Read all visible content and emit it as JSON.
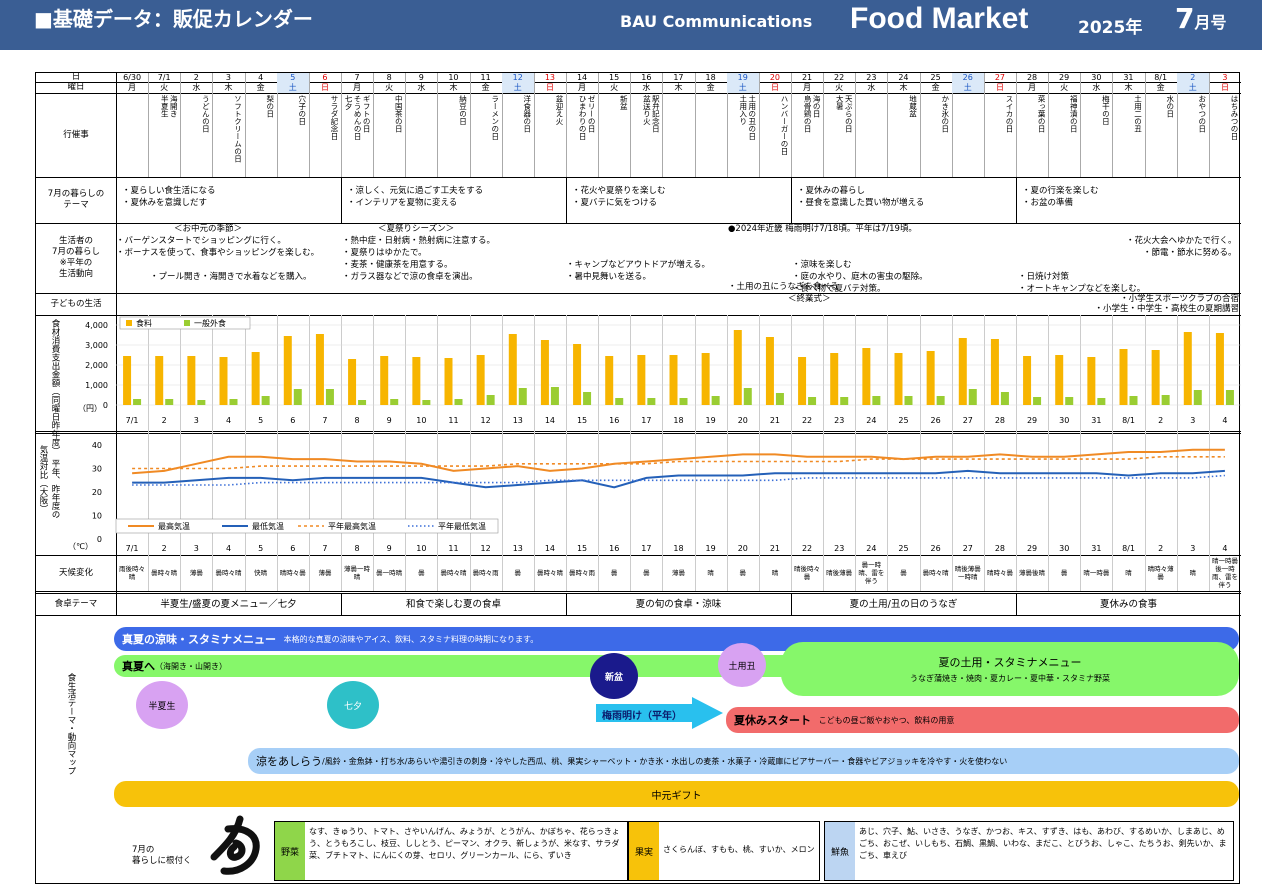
{
  "header": {
    "title": "■基礎データ：販促カレンダー",
    "company": "BAU Communications",
    "brand": "Food Market",
    "year": "2025年",
    "month": "7",
    "month_unit": "月号"
  },
  "labels": {
    "date": "日",
    "weekday": "曜日",
    "events": "行催事",
    "theme": "7月の暮らしの\nテーマ",
    "lifestyle": "生活者の\n7月の暮らし\n※平年の\n生活動向",
    "kids": "子どもの生活",
    "consumption": "食材消費支出金額（同曜日昨年度）",
    "consumption_unit": "（円）",
    "temp": "気温対比（大阪）",
    "temp_sub": "平年、昨年度の",
    "temp_unit": "（℃）",
    "weather": "天候変化",
    "food_theme": "食卓テーマ",
    "map": "食生活テーマ・動向マップ"
  },
  "days": [
    {
      "d": "6/30",
      "w": "月",
      "ev": "",
      "wx": "雨後時々晴"
    },
    {
      "d": "7/1",
      "w": "火",
      "ev": "海開き｜半夏生",
      "wx": "曇時々晴"
    },
    {
      "d": "2",
      "w": "水",
      "ev": "うどんの日",
      "wx": "薄曇"
    },
    {
      "d": "3",
      "w": "木",
      "ev": "ソフトクリームの日",
      "wx": "曇時々晴"
    },
    {
      "d": "4",
      "w": "金",
      "ev": "梨の日",
      "wx": "快晴"
    },
    {
      "d": "5",
      "w": "土",
      "ev": "穴子の日",
      "wx": "晴時々曇"
    },
    {
      "d": "6",
      "w": "日",
      "ev": "サラダ記念日",
      "wx": "薄曇"
    },
    {
      "d": "7",
      "w": "月",
      "ev": "ギフトの日｜そうめんの日｜七夕",
      "wx": "薄曇一時晴"
    },
    {
      "d": "8",
      "w": "火",
      "ev": "中国茶の日",
      "wx": "曇一時晴"
    },
    {
      "d": "9",
      "w": "水",
      "ev": "",
      "wx": "曇"
    },
    {
      "d": "10",
      "w": "木",
      "ev": "納豆の日",
      "wx": "曇時々晴"
    },
    {
      "d": "11",
      "w": "金",
      "ev": "ラーメンの日",
      "wx": "曇時々雨"
    },
    {
      "d": "12",
      "w": "土",
      "ev": "洋食器の日",
      "wx": "曇"
    },
    {
      "d": "13",
      "w": "日",
      "ev": "盆迎え火",
      "wx": "曇時々晴"
    },
    {
      "d": "14",
      "w": "月",
      "ev": "ゼリーの日｜ひまわりの日",
      "wx": "曇時々雨"
    },
    {
      "d": "15",
      "w": "火",
      "ev": "新盆",
      "wx": "曇"
    },
    {
      "d": "16",
      "w": "水",
      "ev": "駅弁記念日｜盆送り火",
      "wx": "曇"
    },
    {
      "d": "17",
      "w": "木",
      "ev": "",
      "wx": "薄曇"
    },
    {
      "d": "18",
      "w": "金",
      "ev": "",
      "wx": "晴"
    },
    {
      "d": "19",
      "w": "土",
      "ev": "土用の丑の日｜土用入り",
      "wx": "曇"
    },
    {
      "d": "20",
      "w": "日",
      "ev": "ハンバーガーの日",
      "wx": "晴"
    },
    {
      "d": "21",
      "w": "月",
      "ev": "海の日｜烏骨鶏の日",
      "wx": "晴後時々曇"
    },
    {
      "d": "22",
      "w": "火",
      "ev": "天ぷらの日｜大暑",
      "wx": "晴後薄曇"
    },
    {
      "d": "23",
      "w": "水",
      "ev": "",
      "wx": "曇一時晴、雷を伴う"
    },
    {
      "d": "24",
      "w": "木",
      "ev": "地蔵盆",
      "wx": "曇"
    },
    {
      "d": "25",
      "w": "金",
      "ev": "かき氷の日",
      "wx": "曇時々晴"
    },
    {
      "d": "26",
      "w": "土",
      "ev": "",
      "wx": "晴後薄曇一時晴"
    },
    {
      "d": "27",
      "w": "日",
      "ev": "スイカの日",
      "wx": "晴時々曇"
    },
    {
      "d": "28",
      "w": "月",
      "ev": "菜っ葉の日",
      "wx": "薄曇後晴"
    },
    {
      "d": "29",
      "w": "火",
      "ev": "福神漬の日",
      "wx": "曇"
    },
    {
      "d": "30",
      "w": "水",
      "ev": "梅干の日",
      "wx": "晴一時曇"
    },
    {
      "d": "31",
      "w": "木",
      "ev": "土用二の丑",
      "wx": "晴"
    },
    {
      "d": "8/1",
      "w": "金",
      "ev": "水の日",
      "wx": "晴時々薄曇"
    },
    {
      "d": "2",
      "w": "土",
      "ev": "おやつの日",
      "wx": "晴"
    },
    {
      "d": "3",
      "w": "日",
      "ev": "はちみつの日",
      "wx": "晴一時曇後一時雨、雷を伴う"
    }
  ],
  "themes": [
    [
      "・夏らしい食生活になる",
      "・夏休みを意識しだす"
    ],
    [
      "・涼しく、元気に過ごす工夫をする",
      "・インテリアを夏物に変える"
    ],
    [
      "・花火や夏祭りを楽しむ",
      "・夏バテに気をつける"
    ],
    [
      "・夏休みの暮らし",
      "・昼食を意識した買い物が増える"
    ],
    [
      "・夏の行楽を楽しむ",
      "・お盆の準備"
    ]
  ],
  "lifestyle": {
    "head1": "＜お中元の季節＞",
    "head2": "＜夏祭りシーズン＞",
    "notice": "●2024年近畿 梅雨明け7/18頃。平年は7/19頃。",
    "c1": [
      "・バーゲンスタートでショッピングに行く。",
      "・ボーナスを使って、食事やショッピングを楽しむ。",
      "",
      "　　　　・プール開き・海開きで水着などを購入。"
    ],
    "c2": [
      "・熱中症・日射病・熱射病に注意する。",
      "・夏祭りはゆかたで。",
      "・麦茶・健康茶を用意する。",
      "・ガラス器などで涼の食卓を演出。"
    ],
    "c3": [
      "",
      "",
      "・キャンプなどアウトドアが増える。",
      "・暑中見舞いを送る。"
    ],
    "c4": [
      "",
      "",
      "・涼味を楽しむ",
      "・庭の水やり、庭木の害虫の駆除。",
      "・食べ物で夏バテ対策。"
    ],
    "c5": [
      "",
      "",
      "",
      "・日焼け対策",
      "・オートキャンプなどを楽しむ。"
    ],
    "c6": [
      "・花火大会へゆかたで行く。",
      "・節電・節水に努める。"
    ],
    "doyo": "土用の丑にうなぎを食べる"
  },
  "kids": {
    "center": "＜終業式＞",
    "right1": "・小学生スポーツクラブの合宿",
    "right2": "・小学生・中学生・高校生の夏期講習"
  },
  "chart_data": [
    {
      "type": "bar",
      "categories": [
        "7/1",
        "2",
        "3",
        "4",
        "5",
        "6",
        "7",
        "8",
        "9",
        "10",
        "11",
        "12",
        "13",
        "14",
        "15",
        "16",
        "17",
        "18",
        "19",
        "20",
        "21",
        "22",
        "23",
        "24",
        "25",
        "26",
        "27",
        "28",
        "29",
        "30",
        "31",
        "8/1",
        "2",
        "3",
        "4"
      ],
      "series": [
        {
          "name": "食料",
          "color": "#f7b500",
          "values": [
            2450,
            2450,
            2450,
            2400,
            2650,
            3450,
            3550,
            2300,
            2450,
            2400,
            2350,
            2500,
            3550,
            3250,
            3050,
            2450,
            2500,
            2500,
            2600,
            3750,
            3400,
            2400,
            2600,
            2850,
            2600,
            2700,
            3350,
            3300,
            2450,
            2500,
            2400,
            2800,
            2750,
            3650,
            3600
          ]
        },
        {
          "name": "一般外食",
          "color": "#9acd32",
          "values": [
            300,
            300,
            250,
            300,
            450,
            800,
            800,
            250,
            300,
            250,
            300,
            500,
            850,
            900,
            650,
            350,
            350,
            350,
            450,
            850,
            600,
            400,
            400,
            450,
            450,
            450,
            800,
            650,
            400,
            400,
            350,
            450,
            500,
            750,
            750
          ]
        }
      ],
      "yticks": [
        "4,000",
        "3,000",
        "2,000",
        "1,000",
        "0"
      ],
      "ylim": [
        0,
        4000
      ]
    },
    {
      "type": "line",
      "categories": [
        "7/1",
        "2",
        "3",
        "4",
        "5",
        "6",
        "7",
        "8",
        "9",
        "10",
        "11",
        "12",
        "13",
        "14",
        "15",
        "16",
        "17",
        "18",
        "19",
        "20",
        "21",
        "22",
        "23",
        "24",
        "25",
        "26",
        "27",
        "28",
        "29",
        "30",
        "31",
        "8/1",
        "2",
        "3",
        "4"
      ],
      "series": [
        {
          "name": "最高気温",
          "color": "#f08a24",
          "values": [
            28,
            29,
            32,
            35,
            35,
            34,
            34,
            33,
            33,
            32,
            29,
            30,
            31,
            29,
            30,
            32,
            33,
            34,
            35,
            36,
            36,
            35,
            35,
            35,
            34,
            35,
            35,
            36,
            35,
            35,
            36,
            37,
            37,
            38,
            38
          ]
        },
        {
          "name": "最低気温",
          "color": "#2460b8",
          "values": [
            24,
            24,
            25,
            26,
            26,
            25,
            26,
            26,
            26,
            26,
            24,
            22,
            23,
            24,
            25,
            22,
            26,
            27,
            27,
            27,
            28,
            28,
            28,
            28,
            28,
            28,
            29,
            28,
            28,
            28,
            28,
            27,
            28,
            28,
            29
          ]
        },
        {
          "name": "平年最高気温",
          "color": "#f08a24",
          "values": [
            30,
            30,
            30,
            30,
            31,
            31,
            31,
            31,
            31,
            31,
            31,
            31,
            32,
            32,
            32,
            32,
            32,
            33,
            33,
            33,
            33,
            33,
            33,
            34,
            34,
            34,
            34,
            34,
            34,
            34,
            34,
            34,
            35,
            35,
            35
          ]
        },
        {
          "name": "平年最低気温",
          "color": "#3b6fd8",
          "values": [
            23,
            23,
            23,
            23,
            24,
            24,
            24,
            24,
            24,
            24,
            24,
            24,
            24,
            25,
            25,
            25,
            25,
            25,
            25,
            25,
            25,
            26,
            26,
            26,
            26,
            26,
            26,
            26,
            26,
            26,
            26,
            26,
            26,
            26,
            27
          ]
        }
      ],
      "yticks": [
        "40",
        "30",
        "20",
        "10",
        "0"
      ],
      "ylim": [
        0,
        40
      ]
    }
  ],
  "food_themes": [
    "半夏生/盛夏の夏メニュー／七夕",
    "和食で楽しむ夏の食卓",
    "夏の旬の食卓・涼味",
    "夏の土用/丑の日のうなぎ",
    "夏休みの食事"
  ],
  "map": {
    "bar1_title": "真夏の涼味・スタミナメニュー",
    "bar1_text": "本格的な真夏の涼味やアイス、飲料、スタミナ料理の時期になります。",
    "bar2_title": "真夏へ",
    "bar2_sub": "（海開き・山開き）",
    "hangesho": "半夏生",
    "tanabata": "七夕",
    "shinbon": "新盆",
    "doyo": "土用丑",
    "doyo_title": "夏の土用・スタミナメニュー",
    "doyo_text": "うなぎ蒲焼き・焼肉・夏カレー・夏中華・スタミナ野菜",
    "tsuyu": "梅雨明け（平年）",
    "vacation_title": "夏休みスタート",
    "vacation_text": "こどもの昼ご飯やおやつ、飲料の用意",
    "ryo_title": "涼をあしらう",
    "ryo_text": "/風鈴・金魚鉢・打ち水/あらいや湯引きの刺身・冷やした西瓜、桃、果実シャーベット・かき氷・水出しの麦茶・水菓子・冷蔵庫にビアサーバー・食器やビアジョッキを冷やす・火を使わない",
    "chugen": "中元ギフト"
  },
  "season": {
    "caption": "7月の\n暮らしに根付く",
    "veg_label": "野菜",
    "veg": "なす、きゅうり、トマト、さやいんげん、みょうが、とうがん、かぼちゃ、花らっきょう、とうもろこし、枝豆、ししとう、ピーマン、オクラ、新しょうが、米なす、サラダ菜、ブチトマト、にんにくの芽、セロリ、グリーンカール、にら、ずいき",
    "fruit_label": "果実",
    "fruit": "さくらんぼ、すもも、桃、すいか、メロン",
    "fish_label": "鮮魚",
    "fish": "あじ、穴子、鮎、いさき、うなぎ、かつお、キス、すずき、はも、あわび、するめいか、しまあじ、めごち、おこぜ、いしもち、石鯛、黒鯛、いわな、まだこ、とびうお、しゃこ、たちうお、剣先いか、まごち、車えび"
  }
}
